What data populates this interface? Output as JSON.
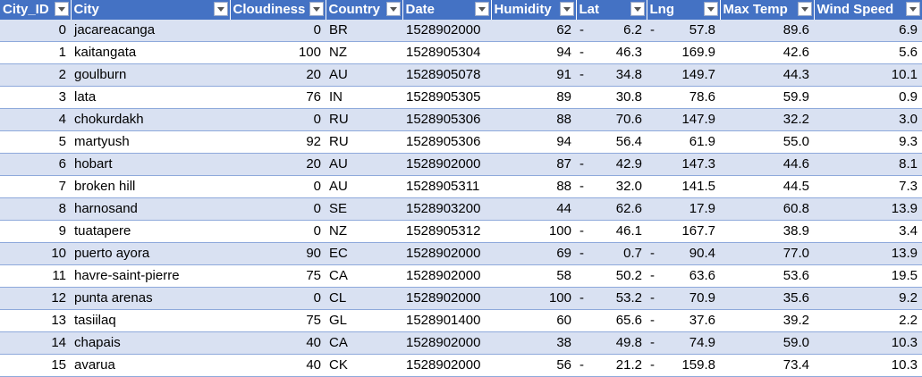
{
  "headers": [
    {
      "key": "city_id",
      "label": "City_ID"
    },
    {
      "key": "city",
      "label": "City"
    },
    {
      "key": "cloudiness",
      "label": "Cloudiness"
    },
    {
      "key": "country",
      "label": "Country"
    },
    {
      "key": "date",
      "label": "Date"
    },
    {
      "key": "humidity",
      "label": "Humidity"
    },
    {
      "key": "lat",
      "label": "Lat"
    },
    {
      "key": "lng",
      "label": "Lng"
    },
    {
      "key": "max_temp",
      "label": "Max Temp"
    },
    {
      "key": "wind_speed",
      "label": "Wind Speed"
    }
  ],
  "filter_icon": "dropdown-filter-icon",
  "colors": {
    "header": "#4472c4",
    "band": "#d9e1f2",
    "rule": "#8ea9db"
  },
  "rows": [
    {
      "city_id": "0",
      "city": "jacareacanga",
      "cloudiness": "0",
      "country": "BR",
      "date": "1528902000",
      "humidity": "62",
      "lat_sign": "-",
      "lat": "6.2",
      "lng_sign": "-",
      "lng": "57.8",
      "max_temp": "89.6",
      "wind_speed": "6.9"
    },
    {
      "city_id": "1",
      "city": "kaitangata",
      "cloudiness": "100",
      "country": "NZ",
      "date": "1528905304",
      "humidity": "94",
      "lat_sign": "-",
      "lat": "46.3",
      "lng_sign": "",
      "lng": "169.9",
      "max_temp": "42.6",
      "wind_speed": "5.6"
    },
    {
      "city_id": "2",
      "city": "goulburn",
      "cloudiness": "20",
      "country": "AU",
      "date": "1528905078",
      "humidity": "91",
      "lat_sign": "-",
      "lat": "34.8",
      "lng_sign": "",
      "lng": "149.7",
      "max_temp": "44.3",
      "wind_speed": "10.1"
    },
    {
      "city_id": "3",
      "city": "lata",
      "cloudiness": "76",
      "country": "IN",
      "date": "1528905305",
      "humidity": "89",
      "lat_sign": "",
      "lat": "30.8",
      "lng_sign": "",
      "lng": "78.6",
      "max_temp": "59.9",
      "wind_speed": "0.9"
    },
    {
      "city_id": "4",
      "city": "chokurdakh",
      "cloudiness": "0",
      "country": "RU",
      "date": "1528905306",
      "humidity": "88",
      "lat_sign": "",
      "lat": "70.6",
      "lng_sign": "",
      "lng": "147.9",
      "max_temp": "32.2",
      "wind_speed": "3.0"
    },
    {
      "city_id": "5",
      "city": "martyush",
      "cloudiness": "92",
      "country": "RU",
      "date": "1528905306",
      "humidity": "94",
      "lat_sign": "",
      "lat": "56.4",
      "lng_sign": "",
      "lng": "61.9",
      "max_temp": "55.0",
      "wind_speed": "9.3"
    },
    {
      "city_id": "6",
      "city": "hobart",
      "cloudiness": "20",
      "country": "AU",
      "date": "1528902000",
      "humidity": "87",
      "lat_sign": "-",
      "lat": "42.9",
      "lng_sign": "",
      "lng": "147.3",
      "max_temp": "44.6",
      "wind_speed": "8.1"
    },
    {
      "city_id": "7",
      "city": "broken hill",
      "cloudiness": "0",
      "country": "AU",
      "date": "1528905311",
      "humidity": "88",
      "lat_sign": "-",
      "lat": "32.0",
      "lng_sign": "",
      "lng": "141.5",
      "max_temp": "44.5",
      "wind_speed": "7.3"
    },
    {
      "city_id": "8",
      "city": "harnosand",
      "cloudiness": "0",
      "country": "SE",
      "date": "1528903200",
      "humidity": "44",
      "lat_sign": "",
      "lat": "62.6",
      "lng_sign": "",
      "lng": "17.9",
      "max_temp": "60.8",
      "wind_speed": "13.9"
    },
    {
      "city_id": "9",
      "city": "tuatapere",
      "cloudiness": "0",
      "country": "NZ",
      "date": "1528905312",
      "humidity": "100",
      "lat_sign": "-",
      "lat": "46.1",
      "lng_sign": "",
      "lng": "167.7",
      "max_temp": "38.9",
      "wind_speed": "3.4"
    },
    {
      "city_id": "10",
      "city": "puerto ayora",
      "cloudiness": "90",
      "country": "EC",
      "date": "1528902000",
      "humidity": "69",
      "lat_sign": "-",
      "lat": "0.7",
      "lng_sign": "-",
      "lng": "90.4",
      "max_temp": "77.0",
      "wind_speed": "13.9"
    },
    {
      "city_id": "11",
      "city": "havre-saint-pierre",
      "cloudiness": "75",
      "country": "CA",
      "date": "1528902000",
      "humidity": "58",
      "lat_sign": "",
      "lat": "50.2",
      "lng_sign": "-",
      "lng": "63.6",
      "max_temp": "53.6",
      "wind_speed": "19.5"
    },
    {
      "city_id": "12",
      "city": "punta arenas",
      "cloudiness": "0",
      "country": "CL",
      "date": "1528902000",
      "humidity": "100",
      "lat_sign": "-",
      "lat": "53.2",
      "lng_sign": "-",
      "lng": "70.9",
      "max_temp": "35.6",
      "wind_speed": "9.2"
    },
    {
      "city_id": "13",
      "city": "tasiilaq",
      "cloudiness": "75",
      "country": "GL",
      "date": "1528901400",
      "humidity": "60",
      "lat_sign": "",
      "lat": "65.6",
      "lng_sign": "-",
      "lng": "37.6",
      "max_temp": "39.2",
      "wind_speed": "2.2"
    },
    {
      "city_id": "14",
      "city": "chapais",
      "cloudiness": "40",
      "country": "CA",
      "date": "1528902000",
      "humidity": "38",
      "lat_sign": "",
      "lat": "49.8",
      "lng_sign": "-",
      "lng": "74.9",
      "max_temp": "59.0",
      "wind_speed": "10.3"
    },
    {
      "city_id": "15",
      "city": "avarua",
      "cloudiness": "40",
      "country": "CK",
      "date": "1528902000",
      "humidity": "56",
      "lat_sign": "-",
      "lat": "21.2",
      "lng_sign": "-",
      "lng": "159.8",
      "max_temp": "73.4",
      "wind_speed": "10.3"
    }
  ]
}
